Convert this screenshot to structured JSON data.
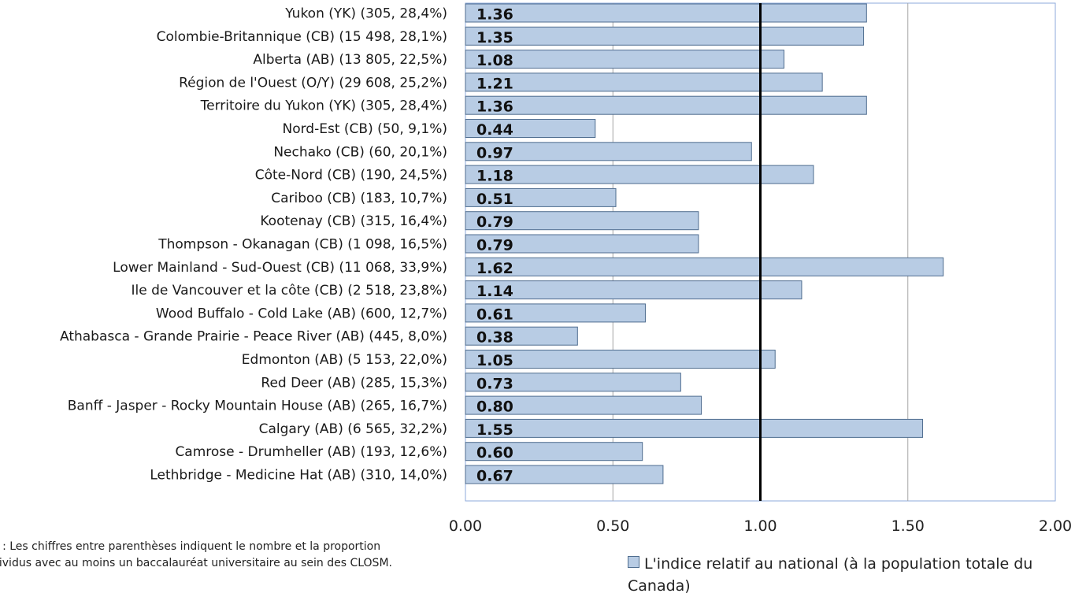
{
  "chart_data": {
    "type": "bar",
    "orientation": "horizontal",
    "categories": [
      "Yukon (YK) (305, 28,4%)",
      "Colombie-Britannique (CB) (15 498, 28,1%)",
      "Alberta (AB) (13 805, 22,5%)",
      "Région de l'Ouest (O/Y) (29 608, 25,2%)",
      "Territoire du Yukon (YK) (305, 28,4%)",
      "Nord-Est (CB) (50, 9,1%)",
      "Nechako (CB) (60, 20,1%)",
      "Côte-Nord (CB) (190, 24,5%)",
      "Cariboo (CB) (183, 10,7%)",
      "Kootenay (CB) (315, 16,4%)",
      "Thompson - Okanagan (CB) (1 098, 16,5%)",
      "Lower Mainland - Sud-Ouest (CB) (11 068, 33,9%)",
      "Ile de Vancouver et la côte (CB) (2 518, 23,8%)",
      "Wood Buffalo - Cold Lake (AB) (600, 12,7%)",
      "Athabasca - Grande Prairie - Peace River (AB) (445, 8,0%)",
      "Edmonton (AB) (5 153, 22,0%)",
      "Red Deer (AB) (285, 15,3%)",
      "Banff - Jasper - Rocky Mountain House (AB) (265, 16,7%)",
      "Calgary (AB) (6 565, 32,2%)",
      "Camrose - Drumheller (AB) (193, 12,6%)",
      "Lethbridge - Medicine Hat (AB) (310, 14,0%)"
    ],
    "values": [
      1.36,
      1.35,
      1.08,
      1.21,
      1.36,
      0.44,
      0.97,
      1.18,
      0.51,
      0.79,
      0.79,
      1.62,
      1.14,
      0.61,
      0.38,
      1.05,
      0.73,
      0.8,
      1.55,
      0.6,
      0.67
    ],
    "value_labels": [
      "1.36",
      "1.35",
      "1.08",
      "1.21",
      "1.36",
      "0.44",
      "0.97",
      "1.18",
      "0.51",
      "0.79",
      "0.79",
      "1.62",
      "1.14",
      "0.61",
      "0.38",
      "1.05",
      "0.73",
      "0.80",
      "1.55",
      "0.60",
      "0.67"
    ],
    "series": [
      {
        "name": "L'indice relatif au national (à la population totale du Canada)"
      }
    ],
    "xlim": [
      0,
      2
    ],
    "xticks": [
      "0.00",
      "0.50",
      "1.00",
      "1.50",
      "2.00"
    ],
    "reference_line": 1.0,
    "grid": true,
    "legend_position": "bottom-right",
    "colors": {
      "bar_fill": "#b8cce4",
      "bar_stroke": "#4f6d8f",
      "grid": "#a6a6a6",
      "frame": "#8eaadb",
      "reference": "#000000"
    }
  },
  "note": "e : Les chiffres entre parenthèses indiquent le nombre et la proportion\ndividus avec au moins un baccalauréat universitaire au sein des CLOSM.",
  "legend": {
    "label": "L'indice relatif au national (à la population totale du Canada)"
  }
}
